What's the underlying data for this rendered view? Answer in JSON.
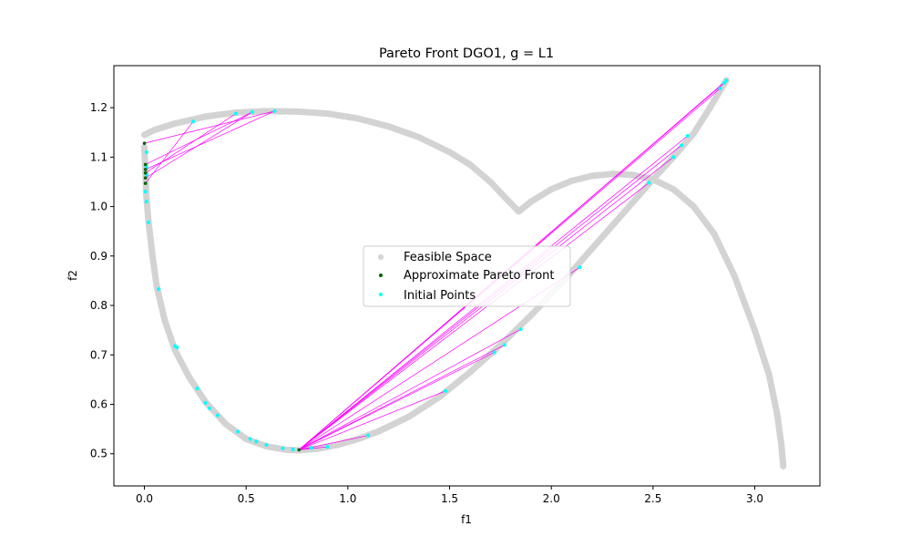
{
  "chart_data": {
    "type": "scatter",
    "title": "Pareto Front DGO1, g = L1",
    "xlabel": "f1",
    "ylabel": "f2",
    "xlim": [
      -0.15,
      3.32
    ],
    "ylim": [
      0.435,
      1.285
    ],
    "xticks": [
      0.0,
      0.5,
      1.0,
      1.5,
      2.0,
      2.5,
      3.0
    ],
    "xtick_labels": [
      "0.0",
      "0.5",
      "1.0",
      "1.5",
      "2.0",
      "2.5",
      "3.0"
    ],
    "yticks": [
      0.5,
      0.6,
      0.7,
      0.8,
      0.9,
      1.0,
      1.1,
      1.2
    ],
    "ytick_labels": [
      "0.5",
      "0.6",
      "0.7",
      "0.8",
      "0.9",
      "1.0",
      "1.1",
      "1.2"
    ],
    "grid": false,
    "legend_position": "center",
    "colors": {
      "feasible": "#d3d3d3",
      "pareto": "#006400",
      "initial": "#00ffff",
      "path": "#ff00ff"
    },
    "series": [
      {
        "name": "Feasible Space",
        "points": [
          [
            0.0,
            1.145
          ],
          [
            0.05,
            1.155
          ],
          [
            0.15,
            1.168
          ],
          [
            0.3,
            1.182
          ],
          [
            0.45,
            1.19
          ],
          [
            0.6,
            1.193
          ],
          [
            0.75,
            1.192
          ],
          [
            0.9,
            1.188
          ],
          [
            1.05,
            1.178
          ],
          [
            1.2,
            1.162
          ],
          [
            1.35,
            1.14
          ],
          [
            1.5,
            1.11
          ],
          [
            1.6,
            1.085
          ],
          [
            1.7,
            1.05
          ],
          [
            1.78,
            1.015
          ],
          [
            1.84,
            0.99
          ],
          [
            1.9,
            1.01
          ],
          [
            2.0,
            1.035
          ],
          [
            2.1,
            1.052
          ],
          [
            2.2,
            1.062
          ],
          [
            2.3,
            1.066
          ],
          [
            2.4,
            1.064
          ],
          [
            2.5,
            1.055
          ],
          [
            2.6,
            1.035
          ],
          [
            2.7,
            1.0
          ],
          [
            2.8,
            0.945
          ],
          [
            2.9,
            0.86
          ],
          [
            3.0,
            0.75
          ],
          [
            3.07,
            0.66
          ],
          [
            3.11,
            0.58
          ],
          [
            3.13,
            0.52
          ],
          [
            3.14,
            0.475
          ],
          [
            0.0,
            1.12
          ],
          [
            0.005,
            1.07
          ],
          [
            0.01,
            1.02
          ],
          [
            0.02,
            0.97
          ],
          [
            0.04,
            0.9
          ],
          [
            0.06,
            0.84
          ],
          [
            0.1,
            0.77
          ],
          [
            0.15,
            0.71
          ],
          [
            0.22,
            0.655
          ],
          [
            0.3,
            0.605
          ],
          [
            0.4,
            0.56
          ],
          [
            0.5,
            0.53
          ],
          [
            0.6,
            0.515
          ],
          [
            0.7,
            0.508
          ],
          [
            0.76,
            0.507
          ],
          [
            0.85,
            0.51
          ],
          [
            0.95,
            0.518
          ],
          [
            1.05,
            0.53
          ],
          [
            1.15,
            0.545
          ],
          [
            1.3,
            0.575
          ],
          [
            1.45,
            0.615
          ],
          [
            1.6,
            0.665
          ],
          [
            1.75,
            0.72
          ],
          [
            1.9,
            0.78
          ],
          [
            2.05,
            0.845
          ],
          [
            2.2,
            0.915
          ],
          [
            2.35,
            0.985
          ],
          [
            2.5,
            1.055
          ],
          [
            2.6,
            1.1
          ],
          [
            2.7,
            1.148
          ],
          [
            2.78,
            1.2
          ],
          [
            2.83,
            1.235
          ],
          [
            2.86,
            1.255
          ]
        ]
      },
      {
        "name": "Approximate Pareto Front",
        "points": [
          [
            0.0,
            1.128
          ],
          [
            0.005,
            1.085
          ],
          [
            0.005,
            1.075
          ],
          [
            0.005,
            1.068
          ],
          [
            0.005,
            1.058
          ],
          [
            0.005,
            1.047
          ],
          [
            0.76,
            0.508
          ]
        ]
      },
      {
        "name": "Initial Points",
        "points": [
          [
            0.01,
            1.11
          ],
          [
            0.01,
            1.08
          ],
          [
            0.01,
            1.065
          ],
          [
            0.005,
            1.03
          ],
          [
            0.01,
            1.01
          ],
          [
            0.02,
            0.968
          ],
          [
            0.07,
            0.833
          ],
          [
            0.15,
            0.718
          ],
          [
            0.16,
            0.715
          ],
          [
            0.26,
            0.632
          ],
          [
            0.3,
            0.603
          ],
          [
            0.32,
            0.592
          ],
          [
            0.36,
            0.578
          ],
          [
            0.46,
            0.545
          ],
          [
            0.52,
            0.53
          ],
          [
            0.55,
            0.525
          ],
          [
            0.6,
            0.518
          ],
          [
            0.68,
            0.511
          ],
          [
            0.73,
            0.509
          ],
          [
            0.82,
            0.512
          ],
          [
            0.9,
            0.514
          ],
          [
            1.1,
            0.537
          ],
          [
            1.48,
            0.627
          ],
          [
            1.72,
            0.705
          ],
          [
            1.77,
            0.72
          ],
          [
            1.85,
            0.752
          ],
          [
            2.14,
            0.877
          ],
          [
            2.48,
            1.048
          ],
          [
            2.6,
            1.1
          ],
          [
            2.64,
            1.124
          ],
          [
            2.67,
            1.143
          ],
          [
            2.83,
            1.239
          ],
          [
            2.85,
            1.25
          ],
          [
            2.86,
            1.255
          ],
          [
            0.24,
            1.172
          ],
          [
            0.45,
            1.188
          ],
          [
            0.53,
            1.191
          ],
          [
            0.64,
            1.193
          ]
        ]
      }
    ],
    "paths": [
      [
        [
          0.76,
          0.508
        ],
        [
          2.86,
          1.255
        ]
      ],
      [
        [
          0.76,
          0.508
        ],
        [
          2.85,
          1.25
        ]
      ],
      [
        [
          0.76,
          0.508
        ],
        [
          2.83,
          1.239
        ]
      ],
      [
        [
          0.76,
          0.508
        ],
        [
          2.67,
          1.143
        ]
      ],
      [
        [
          0.76,
          0.508
        ],
        [
          2.64,
          1.124
        ]
      ],
      [
        [
          0.76,
          0.508
        ],
        [
          2.6,
          1.1
        ]
      ],
      [
        [
          0.76,
          0.508
        ],
        [
          2.48,
          1.048
        ]
      ],
      [
        [
          0.76,
          0.508
        ],
        [
          2.14,
          0.877
        ]
      ],
      [
        [
          0.76,
          0.508
        ],
        [
          1.85,
          0.752
        ]
      ],
      [
        [
          0.76,
          0.508
        ],
        [
          1.77,
          0.72
        ]
      ],
      [
        [
          0.76,
          0.508
        ],
        [
          1.72,
          0.705
        ]
      ],
      [
        [
          0.76,
          0.508
        ],
        [
          1.48,
          0.627
        ]
      ],
      [
        [
          0.76,
          0.508
        ],
        [
          1.1,
          0.537
        ]
      ],
      [
        [
          0.76,
          0.508
        ],
        [
          0.9,
          0.514
        ]
      ],
      [
        [
          0.76,
          0.508
        ],
        [
          0.82,
          0.512
        ]
      ],
      [
        [
          0.0,
          1.128
        ],
        [
          0.64,
          1.193
        ]
      ],
      [
        [
          0.005,
          1.085
        ],
        [
          0.53,
          1.191
        ]
      ],
      [
        [
          0.005,
          1.075
        ],
        [
          0.64,
          1.193
        ]
      ],
      [
        [
          0.005,
          1.068
        ],
        [
          0.45,
          1.188
        ]
      ],
      [
        [
          0.005,
          1.058
        ],
        [
          0.53,
          1.191
        ]
      ],
      [
        [
          0.005,
          1.047
        ],
        [
          0.24,
          1.172
        ]
      ]
    ]
  }
}
